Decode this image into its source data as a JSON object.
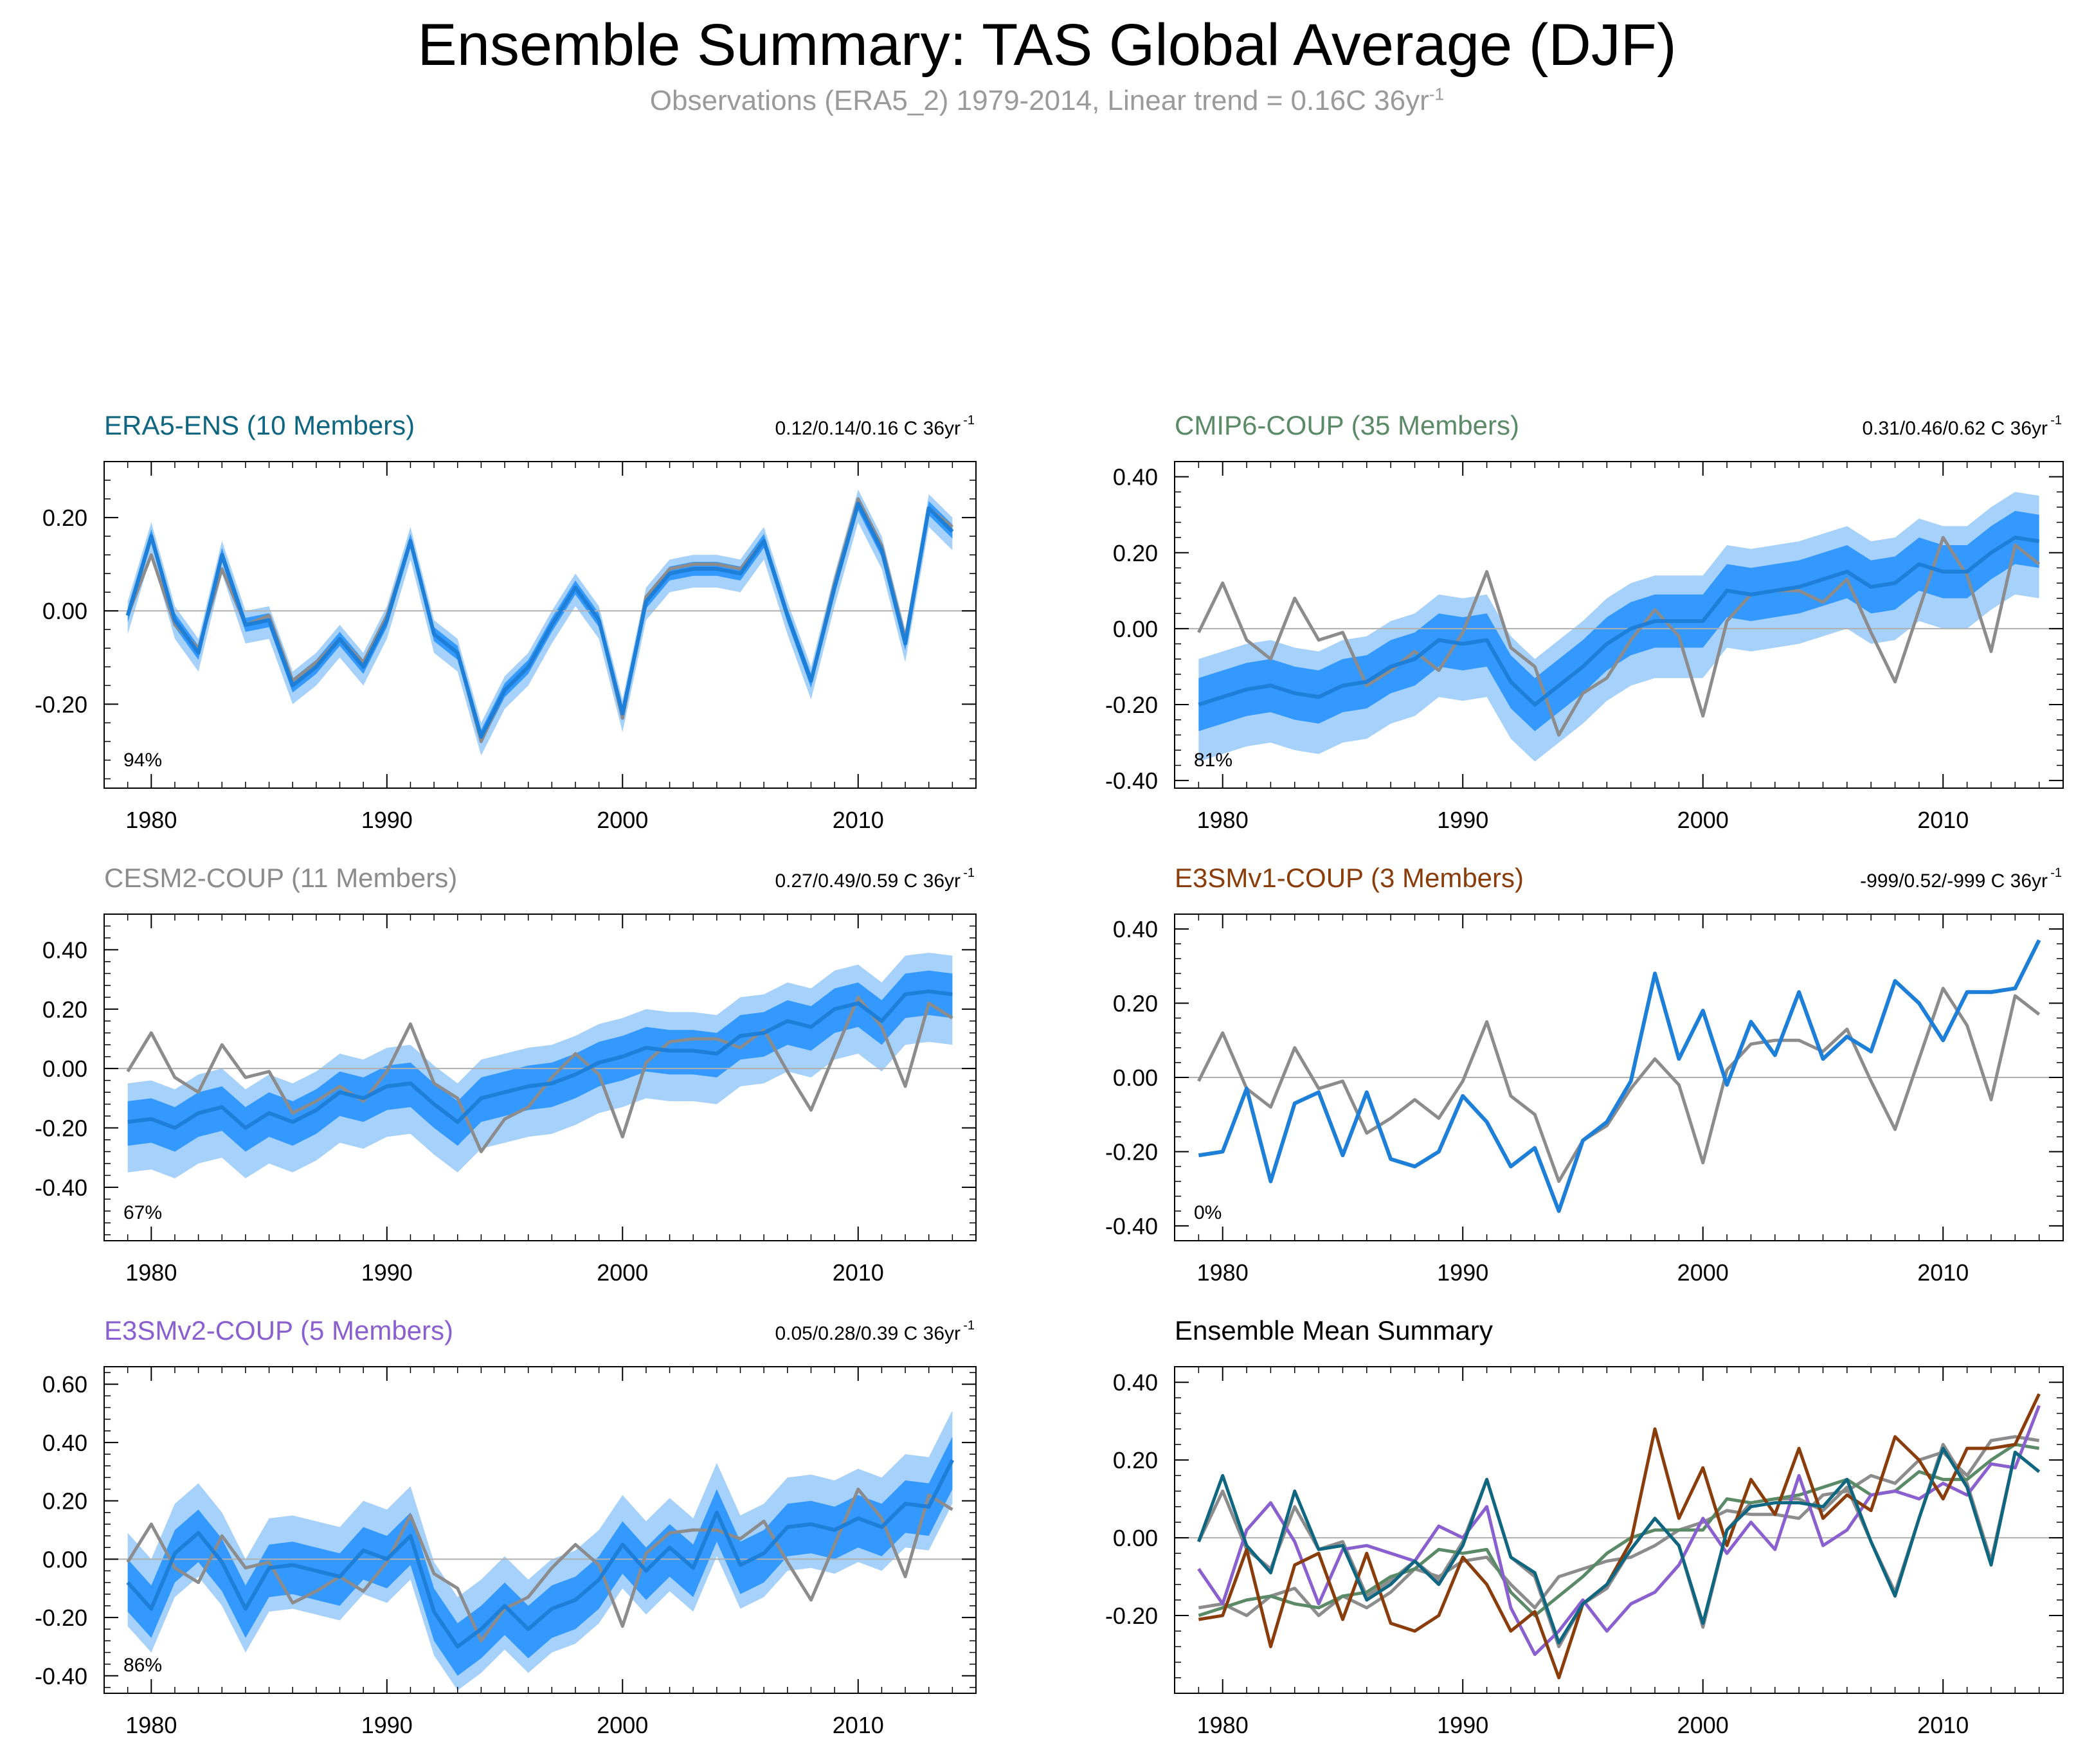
{
  "title": "Ensemble Summary: TAS Global Average (DJF)",
  "subtitle": {
    "text": "Observations (ERA5_2) 1979-2014, Linear trend = 0.16C 36yr",
    "superscript": "-1"
  },
  "colors": {
    "obs": "#8c8c8c",
    "mean": "#1e7fd8",
    "inner_band": "#3399ff",
    "outer_band": "#a6d1fb",
    "era5": "#0e6680",
    "cmip6": "#5a8a66",
    "cesm2": "#8c8c8c",
    "e3smv1": "#8a3d0a",
    "e3smv2": "#8a5fd0",
    "zero_line": "#b0b0b0"
  },
  "chart_data": [
    {
      "id": "era5",
      "type": "line",
      "title": "ERA5-ENS (10 Members)",
      "title_color": "#0e6680",
      "trend_text": "0.12/0.14/0.16 C 36yr",
      "trend_sup": "-1",
      "pct": "94%",
      "ylim": [
        -0.38,
        0.32
      ],
      "yticks": [
        -0.2,
        0.0,
        0.2
      ],
      "ytick_labels": [
        "-0.20",
        "0.00",
        "0.20"
      ],
      "xlim": [
        1978,
        2015
      ],
      "xticks": [
        1980,
        1990,
        2000,
        2010
      ],
      "x_start": 1979,
      "obs": [
        -0.01,
        0.12,
        -0.03,
        -0.08,
        0.09,
        -0.03,
        -0.01,
        -0.15,
        -0.11,
        -0.06,
        -0.11,
        -0.01,
        0.15,
        -0.05,
        -0.09,
        -0.28,
        -0.17,
        -0.12,
        -0.03,
        0.05,
        -0.02,
        -0.23,
        0.03,
        0.09,
        0.1,
        0.1,
        0.09,
        0.15,
        -0.01,
        -0.15,
        0.06,
        0.24,
        0.14,
        -0.06,
        0.22,
        0.18
      ],
      "mean": [
        -0.01,
        0.16,
        -0.02,
        -0.09,
        0.12,
        -0.03,
        -0.02,
        -0.16,
        -0.12,
        -0.06,
        -0.12,
        -0.02,
        0.15,
        -0.05,
        -0.09,
        -0.27,
        -0.17,
        -0.12,
        -0.03,
        0.05,
        -0.02,
        -0.22,
        0.02,
        0.08,
        0.09,
        0.09,
        0.08,
        0.15,
        -0.01,
        -0.15,
        0.05,
        0.23,
        0.13,
        -0.07,
        0.22,
        0.17
      ],
      "inner_lo_offset": -0.015,
      "inner_hi_offset": 0.015,
      "outer_lo_offset": -0.04,
      "outer_hi_offset": 0.03
    },
    {
      "id": "cmip6",
      "type": "line",
      "title": "CMIP6-COUP (35 Members)",
      "title_color": "#5a8a66",
      "trend_text": "0.31/0.46/0.62 C 36yr",
      "trend_sup": "-1",
      "pct": "81%",
      "ylim": [
        -0.42,
        0.44
      ],
      "yticks": [
        -0.4,
        -0.2,
        0.0,
        0.2,
        0.4
      ],
      "ytick_labels": [
        "-0.40",
        "-0.20",
        "0.00",
        "0.20",
        "0.40"
      ],
      "xlim": [
        1978,
        2015
      ],
      "xticks": [
        1980,
        1990,
        2000,
        2010
      ],
      "x_start": 1979,
      "obs": [
        -0.01,
        0.12,
        -0.03,
        -0.08,
        0.08,
        -0.03,
        -0.01,
        -0.15,
        -0.11,
        -0.06,
        -0.11,
        -0.01,
        0.15,
        -0.05,
        -0.1,
        -0.28,
        -0.17,
        -0.13,
        -0.03,
        0.05,
        -0.02,
        -0.23,
        0.02,
        0.09,
        0.1,
        0.1,
        0.07,
        0.13,
        -0.01,
        -0.14,
        0.05,
        0.24,
        0.14,
        -0.06,
        0.22,
        0.17
      ],
      "mean": [
        -0.2,
        -0.18,
        -0.16,
        -0.15,
        -0.17,
        -0.18,
        -0.15,
        -0.14,
        -0.1,
        -0.08,
        -0.03,
        -0.04,
        -0.03,
        -0.14,
        -0.2,
        -0.15,
        -0.1,
        -0.04,
        0.0,
        0.02,
        0.02,
        0.02,
        0.1,
        0.09,
        0.1,
        0.11,
        0.13,
        0.15,
        0.11,
        0.12,
        0.17,
        0.15,
        0.15,
        0.2,
        0.24,
        0.23
      ],
      "inner_lo_offset": -0.07,
      "inner_hi_offset": 0.07,
      "outer_lo_offset": -0.15,
      "outer_hi_offset": 0.12
    },
    {
      "id": "cesm2",
      "type": "line",
      "title": "CESM2-COUP (11 Members)",
      "title_color": "#8c8c8c",
      "trend_text": "0.27/0.49/0.59 C 36yr",
      "trend_sup": "-1",
      "pct": "67%",
      "ylim": [
        -0.58,
        0.52
      ],
      "yticks": [
        -0.4,
        -0.2,
        0.0,
        0.2,
        0.4
      ],
      "ytick_labels": [
        "-0.40",
        "-0.20",
        "0.00",
        "0.20",
        "0.40"
      ],
      "xlim": [
        1978,
        2015
      ],
      "xticks": [
        1980,
        1990,
        2000,
        2010
      ],
      "x_start": 1979,
      "obs": [
        -0.01,
        0.12,
        -0.03,
        -0.08,
        0.08,
        -0.03,
        -0.01,
        -0.15,
        -0.11,
        -0.06,
        -0.11,
        -0.01,
        0.15,
        -0.05,
        -0.1,
        -0.28,
        -0.17,
        -0.13,
        -0.03,
        0.05,
        -0.02,
        -0.23,
        0.02,
        0.09,
        0.1,
        0.1,
        0.07,
        0.13,
        -0.01,
        -0.14,
        0.05,
        0.24,
        0.14,
        -0.06,
        0.22,
        0.17
      ],
      "mean": [
        -0.18,
        -0.17,
        -0.2,
        -0.15,
        -0.13,
        -0.2,
        -0.15,
        -0.18,
        -0.14,
        -0.08,
        -0.1,
        -0.06,
        -0.05,
        -0.12,
        -0.18,
        -0.1,
        -0.08,
        -0.06,
        -0.05,
        -0.02,
        0.02,
        0.04,
        0.07,
        0.06,
        0.06,
        0.05,
        0.11,
        0.12,
        0.16,
        0.14,
        0.2,
        0.22,
        0.16,
        0.25,
        0.26,
        0.25
      ],
      "inner_lo_offset": -0.08,
      "inner_hi_offset": 0.07,
      "outer_lo_offset": -0.17,
      "outer_hi_offset": 0.13
    },
    {
      "id": "e3smv1",
      "type": "line",
      "title": "E3SMv1-COUP (3 Members)",
      "title_color": "#8a3d0a",
      "trend_text": "-999/0.52/-999 C 36yr",
      "trend_sup": "-1",
      "pct": "0%",
      "ylim": [
        -0.44,
        0.44
      ],
      "yticks": [
        -0.4,
        -0.2,
        0.0,
        0.2,
        0.4
      ],
      "ytick_labels": [
        "-0.40",
        "-0.20",
        "0.00",
        "0.20",
        "0.40"
      ],
      "xlim": [
        1978,
        2015
      ],
      "xticks": [
        1980,
        1990,
        2000,
        2010
      ],
      "x_start": 1979,
      "obs": [
        -0.01,
        0.12,
        -0.03,
        -0.08,
        0.08,
        -0.03,
        -0.01,
        -0.15,
        -0.11,
        -0.06,
        -0.11,
        -0.01,
        0.15,
        -0.05,
        -0.1,
        -0.28,
        -0.17,
        -0.13,
        -0.03,
        0.05,
        -0.02,
        -0.23,
        0.02,
        0.09,
        0.1,
        0.1,
        0.07,
        0.13,
        -0.01,
        -0.14,
        0.05,
        0.24,
        0.14,
        -0.06,
        0.22,
        0.17
      ],
      "mean": [
        -0.21,
        -0.2,
        -0.03,
        -0.28,
        -0.07,
        -0.04,
        -0.21,
        -0.04,
        -0.22,
        -0.24,
        -0.2,
        -0.05,
        -0.12,
        -0.24,
        -0.19,
        -0.36,
        -0.17,
        -0.12,
        -0.01,
        0.28,
        0.05,
        0.18,
        -0.02,
        0.15,
        0.06,
        0.23,
        0.05,
        0.11,
        0.07,
        0.26,
        0.2,
        0.1,
        0.23,
        0.23,
        0.24,
        0.37
      ],
      "inner_lo_offset": 0,
      "inner_hi_offset": 0,
      "outer_lo_offset": 0,
      "outer_hi_offset": 0
    },
    {
      "id": "e3smv2",
      "type": "line",
      "title": "E3SMv2-COUP (5 Members)",
      "title_color": "#8a5fd0",
      "trend_text": "0.05/0.28/0.39 C 36yr",
      "trend_sup": "-1",
      "pct": "86%",
      "ylim": [
        -0.46,
        0.66
      ],
      "yticks": [
        -0.4,
        -0.2,
        0.0,
        0.2,
        0.4,
        0.6
      ],
      "ytick_labels": [
        "-0.40",
        "-0.20",
        "0.00",
        "0.20",
        "0.40",
        "0.60"
      ],
      "xlim": [
        1978,
        2015
      ],
      "xticks": [
        1980,
        1990,
        2000,
        2010
      ],
      "x_start": 1979,
      "obs": [
        -0.01,
        0.12,
        -0.03,
        -0.08,
        0.08,
        -0.03,
        -0.01,
        -0.15,
        -0.11,
        -0.06,
        -0.11,
        -0.01,
        0.15,
        -0.05,
        -0.1,
        -0.28,
        -0.17,
        -0.13,
        -0.03,
        0.05,
        -0.02,
        -0.23,
        0.02,
        0.09,
        0.1,
        0.1,
        0.07,
        0.13,
        -0.01,
        -0.14,
        0.05,
        0.24,
        0.14,
        -0.06,
        0.22,
        0.17
      ],
      "mean": [
        -0.08,
        -0.17,
        0.02,
        0.09,
        -0.01,
        -0.17,
        -0.03,
        -0.02,
        -0.04,
        -0.06,
        0.03,
        0.0,
        0.08,
        -0.18,
        -0.3,
        -0.24,
        -0.16,
        -0.24,
        -0.17,
        -0.14,
        -0.07,
        0.05,
        -0.04,
        0.04,
        -0.03,
        0.16,
        -0.02,
        0.02,
        0.11,
        0.12,
        0.1,
        0.14,
        0.11,
        0.19,
        0.18,
        0.34
      ],
      "inner_lo_offset": -0.1,
      "inner_hi_offset": 0.08,
      "outer_lo_offset": -0.15,
      "outer_hi_offset": 0.17
    },
    {
      "id": "summary",
      "type": "line",
      "title": "Ensemble Mean Summary",
      "title_color": "#000000",
      "trend_text": "",
      "trend_sup": "",
      "pct": "",
      "ylim": [
        -0.4,
        0.44
      ],
      "yticks": [
        -0.2,
        0.0,
        0.2,
        0.4
      ],
      "ytick_labels": [
        "-0.20",
        "0.00",
        "0.20",
        "0.40"
      ],
      "xlim": [
        1978,
        2015
      ],
      "xticks": [
        1980,
        1990,
        2000,
        2010
      ],
      "x_start": 1979,
      "series": [
        {
          "name": "Observations (ERA5_2)",
          "color": "#8c8c8c",
          "values": [
            -0.01,
            0.12,
            -0.03,
            -0.08,
            0.08,
            -0.03,
            -0.01,
            -0.15,
            -0.11,
            -0.06,
            -0.11,
            -0.01,
            0.15,
            -0.05,
            -0.1,
            -0.28,
            -0.17,
            -0.13,
            -0.03,
            0.05,
            -0.02,
            -0.23,
            0.02,
            0.09,
            0.1,
            0.1,
            0.07,
            0.13,
            -0.01,
            -0.14,
            0.05,
            0.24,
            0.14,
            -0.06,
            0.22,
            0.17
          ]
        },
        {
          "name": "CESM2-COUP",
          "color": "#8c8c8c",
          "values": [
            -0.18,
            -0.17,
            -0.2,
            -0.15,
            -0.13,
            -0.2,
            -0.15,
            -0.18,
            -0.14,
            -0.08,
            -0.1,
            -0.06,
            -0.05,
            -0.12,
            -0.18,
            -0.1,
            -0.08,
            -0.06,
            -0.05,
            -0.02,
            0.02,
            0.04,
            0.07,
            0.06,
            0.06,
            0.05,
            0.11,
            0.12,
            0.16,
            0.14,
            0.2,
            0.22,
            0.16,
            0.25,
            0.26,
            0.25
          ]
        },
        {
          "name": "CMIP6-COUP",
          "color": "#5a8a66",
          "values": [
            -0.2,
            -0.18,
            -0.16,
            -0.15,
            -0.17,
            -0.18,
            -0.15,
            -0.14,
            -0.1,
            -0.08,
            -0.03,
            -0.04,
            -0.03,
            -0.14,
            -0.2,
            -0.15,
            -0.1,
            -0.04,
            0.0,
            0.02,
            0.02,
            0.02,
            0.1,
            0.09,
            0.1,
            0.11,
            0.13,
            0.15,
            0.11,
            0.12,
            0.17,
            0.15,
            0.15,
            0.2,
            0.24,
            0.23
          ]
        },
        {
          "name": "E3SMv2-COUP",
          "color": "#8a5fd0",
          "values": [
            -0.08,
            -0.17,
            0.02,
            0.09,
            -0.01,
            -0.17,
            -0.03,
            -0.02,
            -0.04,
            -0.06,
            0.03,
            0.0,
            0.08,
            -0.18,
            -0.3,
            -0.24,
            -0.16,
            -0.24,
            -0.17,
            -0.14,
            -0.07,
            0.05,
            -0.04,
            0.04,
            -0.03,
            0.16,
            -0.02,
            0.02,
            0.11,
            0.12,
            0.1,
            0.14,
            0.11,
            0.19,
            0.18,
            0.34
          ]
        },
        {
          "name": "E3SMv1-COUP",
          "color": "#8a3d0a",
          "values": [
            -0.21,
            -0.2,
            -0.03,
            -0.28,
            -0.07,
            -0.04,
            -0.21,
            -0.04,
            -0.22,
            -0.24,
            -0.2,
            -0.05,
            -0.12,
            -0.24,
            -0.19,
            -0.36,
            -0.17,
            -0.12,
            -0.01,
            0.28,
            0.05,
            0.18,
            -0.02,
            0.15,
            0.06,
            0.23,
            0.05,
            0.11,
            0.07,
            0.26,
            0.2,
            0.1,
            0.23,
            0.23,
            0.24,
            0.37
          ]
        },
        {
          "name": "ERA5-ENS",
          "color": "#0e6680",
          "values": [
            -0.01,
            0.16,
            -0.02,
            -0.09,
            0.12,
            -0.03,
            -0.02,
            -0.16,
            -0.12,
            -0.06,
            -0.12,
            -0.02,
            0.15,
            -0.05,
            -0.09,
            -0.27,
            -0.17,
            -0.12,
            -0.03,
            0.05,
            -0.02,
            -0.22,
            0.02,
            0.08,
            0.09,
            0.09,
            0.08,
            0.15,
            -0.01,
            -0.15,
            0.05,
            0.23,
            0.13,
            -0.07,
            0.22,
            0.17
          ]
        }
      ]
    }
  ]
}
